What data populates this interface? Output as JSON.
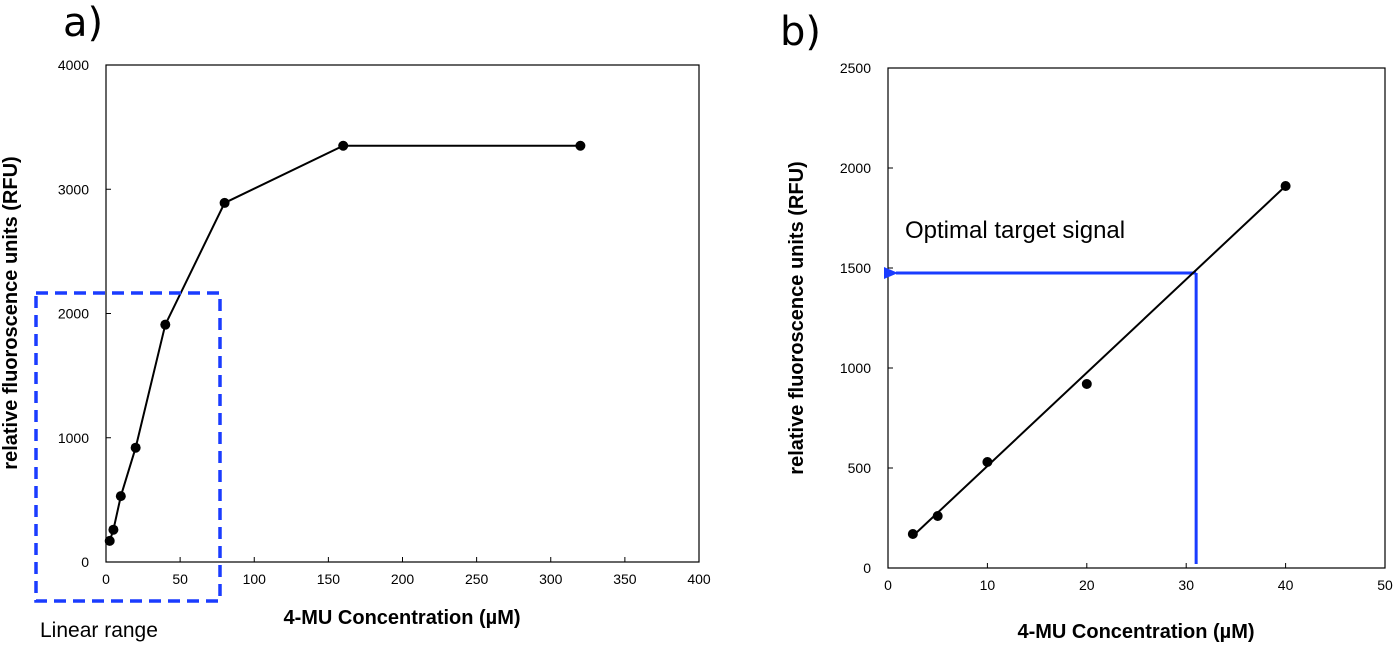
{
  "chart_data": [
    {
      "type": "line",
      "panel_label": "a)",
      "title": "",
      "xlabel": "4-MU Concentration (µM)",
      "ylabel": "relative fluoroscence units (RFU)",
      "xlim": [
        0,
        400
      ],
      "ylim": [
        0,
        4000
      ],
      "xticks": [
        0,
        50,
        100,
        150,
        200,
        250,
        300,
        350,
        400
      ],
      "yticks": [
        0,
        1000,
        2000,
        3000,
        4000
      ],
      "series": [
        {
          "name": "RFU",
          "x": [
            2.5,
            5,
            10,
            20,
            40,
            80,
            160,
            320
          ],
          "y": [
            170,
            260,
            530,
            920,
            1910,
            2890,
            3350,
            3350
          ]
        }
      ],
      "annotations": [
        {
          "type": "dashed-box",
          "label": "Linear range",
          "color": "#1a3cff"
        }
      ],
      "grid": false
    },
    {
      "type": "scatter",
      "panel_label": "b)",
      "title": "",
      "xlabel": "4-MU Concentration (µM)",
      "ylabel": "relative fluoroscence units (RFU)",
      "xlim": [
        0,
        50
      ],
      "ylim": [
        0,
        2500
      ],
      "xticks": [
        0,
        10,
        20,
        30,
        40,
        50
      ],
      "yticks": [
        0,
        500,
        1000,
        1500,
        2000,
        2500
      ],
      "series": [
        {
          "name": "RFU",
          "x": [
            2.5,
            5,
            10,
            20,
            40
          ],
          "y": [
            170,
            260,
            530,
            920,
            1910
          ]
        }
      ],
      "fit_line": {
        "x": [
          2.5,
          40
        ],
        "y": [
          160,
          1910
        ]
      },
      "annotations": [
        {
          "type": "arrow",
          "label": "Optimal target signal",
          "x": 31,
          "y": 1475,
          "color": "#1a3cff"
        }
      ],
      "grid": false
    }
  ]
}
